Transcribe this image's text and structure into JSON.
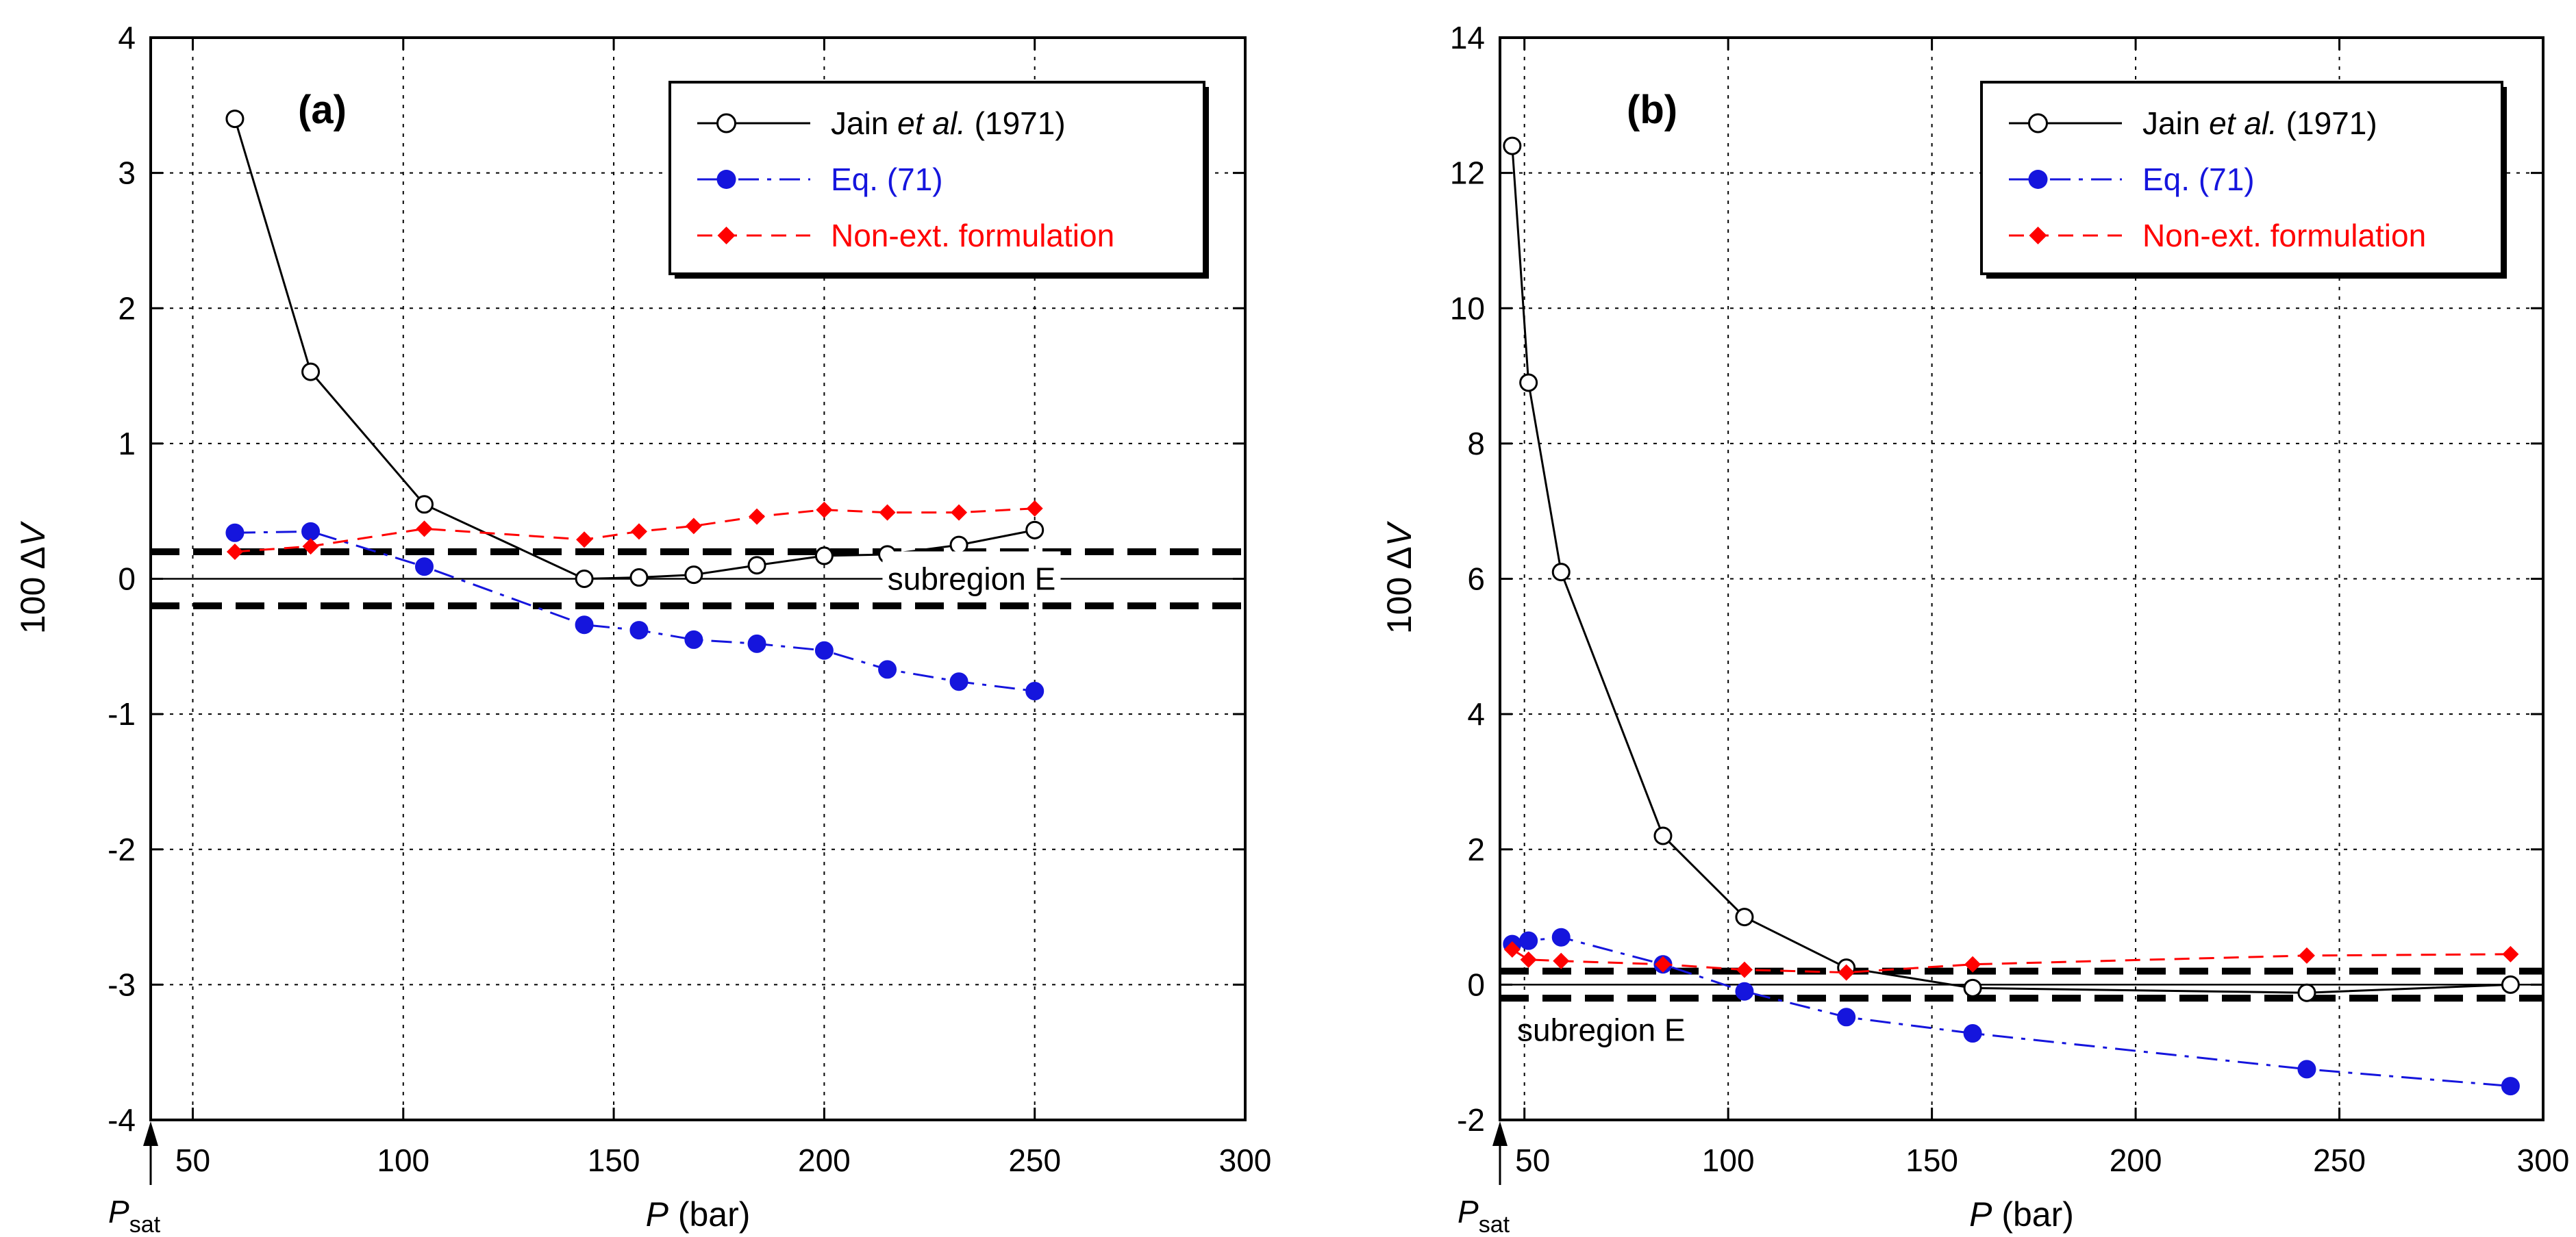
{
  "chart_data": [
    {
      "type": "line",
      "panel_label": "(a)",
      "xlabel_var": "P",
      "xlabel_unit": " (bar)",
      "ylabel_prefix": "100 Δ",
      "ylabel_var": "V",
      "xlim": [
        40,
        300
      ],
      "ylim": [
        -4,
        4
      ],
      "xticks": [
        50,
        100,
        150,
        200,
        250,
        300
      ],
      "yticks": [
        -4,
        -3,
        -2,
        -1,
        0,
        1,
        2,
        3,
        4
      ],
      "grid": true,
      "psat": {
        "value": 40,
        "label_main": "P",
        "label_sub": "sat"
      },
      "subregion": {
        "label": "subregion E",
        "bounds": [
          0.2,
          -0.2
        ]
      },
      "legend_position": "top-right",
      "series": [
        {
          "name": "Jain et al. (1971)",
          "legend_prefix": "Jain ",
          "legend_italic": "et al.",
          "legend_suffix": " (1971)",
          "color": "#000000",
          "marker": "open-circle",
          "line": "solid",
          "x": [
            60,
            78,
            105,
            143,
            156,
            169,
            184,
            200,
            215,
            232,
            250
          ],
          "y": [
            3.4,
            1.53,
            0.55,
            0.0,
            0.01,
            0.03,
            0.1,
            0.17,
            0.18,
            0.25,
            0.36
          ]
        },
        {
          "name": "Eq. (71)",
          "color": "#1515dd",
          "marker": "filled-circle",
          "line": "dashdot",
          "x": [
            60,
            78,
            105,
            143,
            156,
            169,
            184,
            200,
            215,
            232,
            250
          ],
          "y": [
            0.34,
            0.35,
            0.09,
            -0.34,
            -0.38,
            -0.45,
            -0.48,
            -0.53,
            -0.67,
            -0.76,
            -0.83
          ]
        },
        {
          "name": "Non-ext. formulation",
          "color": "#ff0000",
          "marker": "filled-diamond",
          "line": "dashed",
          "x": [
            60,
            78,
            105,
            143,
            156,
            169,
            184,
            200,
            215,
            232,
            250
          ],
          "y": [
            0.2,
            0.24,
            0.37,
            0.29,
            0.35,
            0.39,
            0.46,
            0.51,
            0.49,
            0.49,
            0.52
          ]
        }
      ]
    },
    {
      "type": "line",
      "panel_label": "(b)",
      "xlabel_var": "P",
      "xlabel_unit": " (bar)",
      "ylabel_prefix": "100 Δ",
      "ylabel_var": "V",
      "xlim": [
        44,
        300
      ],
      "ylim": [
        -2,
        14
      ],
      "xticks": [
        50,
        100,
        150,
        200,
        250,
        300
      ],
      "yticks": [
        -2,
        0,
        2,
        4,
        6,
        8,
        10,
        12,
        14
      ],
      "grid": true,
      "psat": {
        "value": 44,
        "label_main": "P",
        "label_sub": "sat"
      },
      "subregion": {
        "label": "subregion E",
        "bounds": [
          0.2,
          -0.2
        ]
      },
      "legend_position": "top-right",
      "series": [
        {
          "name": "Jain et al. (1971)",
          "legend_prefix": "Jain ",
          "legend_italic": "et al.",
          "legend_suffix": " (1971)",
          "color": "#000000",
          "marker": "open-circle",
          "line": "solid",
          "x": [
            47,
            51,
            59,
            84,
            104,
            129,
            160,
            242,
            292
          ],
          "y": [
            12.4,
            8.9,
            6.1,
            2.2,
            1.0,
            0.25,
            -0.05,
            -0.12,
            0.0
          ]
        },
        {
          "name": "Eq. (71)",
          "color": "#1515dd",
          "marker": "filled-circle",
          "line": "dashdot",
          "x": [
            47,
            51,
            59,
            84,
            104,
            129,
            160,
            242,
            292
          ],
          "y": [
            0.6,
            0.65,
            0.7,
            0.3,
            -0.1,
            -0.48,
            -0.72,
            -1.25,
            -1.5
          ]
        },
        {
          "name": "Non-ext. formulation",
          "color": "#ff0000",
          "marker": "filled-diamond",
          "line": "dashed",
          "x": [
            47,
            51,
            59,
            84,
            104,
            129,
            160,
            242,
            292
          ],
          "y": [
            0.52,
            0.37,
            0.35,
            0.3,
            0.22,
            0.18,
            0.3,
            0.43,
            0.45
          ]
        }
      ]
    }
  ]
}
